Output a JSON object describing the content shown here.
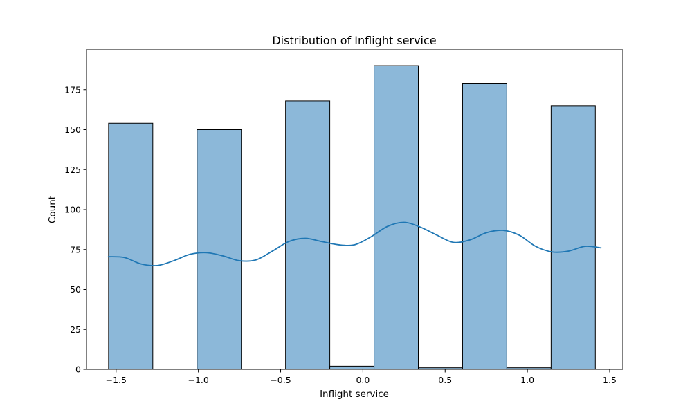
{
  "chart_data": {
    "type": "bar",
    "title": "Distribution of Inflight service",
    "xlabel": "Inflight service",
    "ylabel": "Count",
    "xlim": [
      -1.68,
      1.58
    ],
    "ylim": [
      0,
      200
    ],
    "xticks": [
      -1.5,
      -1.0,
      -0.5,
      0.0,
      0.5,
      1.0,
      1.5
    ],
    "xtick_labels": [
      "−1.5",
      "−1.0",
      "−0.5",
      "0.0",
      "0.5",
      "1.0",
      "1.5"
    ],
    "yticks": [
      0,
      25,
      50,
      75,
      100,
      125,
      150,
      175
    ],
    "ytick_labels": [
      "0",
      "25",
      "50",
      "75",
      "100",
      "125",
      "150",
      "175"
    ],
    "bins": [
      {
        "x0": -1.546,
        "x1": -1.277,
        "count": 154
      },
      {
        "x0": -1.277,
        "x1": -1.008,
        "count": 0
      },
      {
        "x0": -1.008,
        "x1": -0.739,
        "count": 150
      },
      {
        "x0": -0.739,
        "x1": -0.47,
        "count": 0
      },
      {
        "x0": -0.47,
        "x1": -0.201,
        "count": 168
      },
      {
        "x0": -0.201,
        "x1": 0.068,
        "count": 2
      },
      {
        "x0": 0.068,
        "x1": 0.337,
        "count": 190
      },
      {
        "x0": 0.337,
        "x1": 0.606,
        "count": 1
      },
      {
        "x0": 0.606,
        "x1": 0.875,
        "count": 179
      },
      {
        "x0": 0.875,
        "x1": 1.144,
        "count": 1
      },
      {
        "x0": 1.144,
        "x1": 1.413,
        "count": 165
      }
    ],
    "kde": {
      "x": [
        -1.55,
        -1.45,
        -1.35,
        -1.25,
        -1.15,
        -1.05,
        -0.95,
        -0.85,
        -0.75,
        -0.65,
        -0.55,
        -0.45,
        -0.35,
        -0.25,
        -0.15,
        -0.05,
        0.05,
        0.15,
        0.25,
        0.35,
        0.45,
        0.55,
        0.65,
        0.75,
        0.85,
        0.95,
        1.05,
        1.15,
        1.25,
        1.35,
        1.45
      ],
      "y": [
        70.5,
        70,
        66,
        65,
        68,
        72,
        73,
        71,
        68,
        68.5,
        74,
        80,
        82,
        80,
        78,
        78,
        83,
        89.5,
        92,
        89,
        84,
        79.5,
        81,
        85.5,
        87,
        84,
        77,
        73.5,
        74,
        77,
        76
      ]
    },
    "bar_fill": "#8cb8d9",
    "bar_edge": "#000000",
    "kde_color": "#1f77b4",
    "grid": false,
    "legend": "none"
  }
}
